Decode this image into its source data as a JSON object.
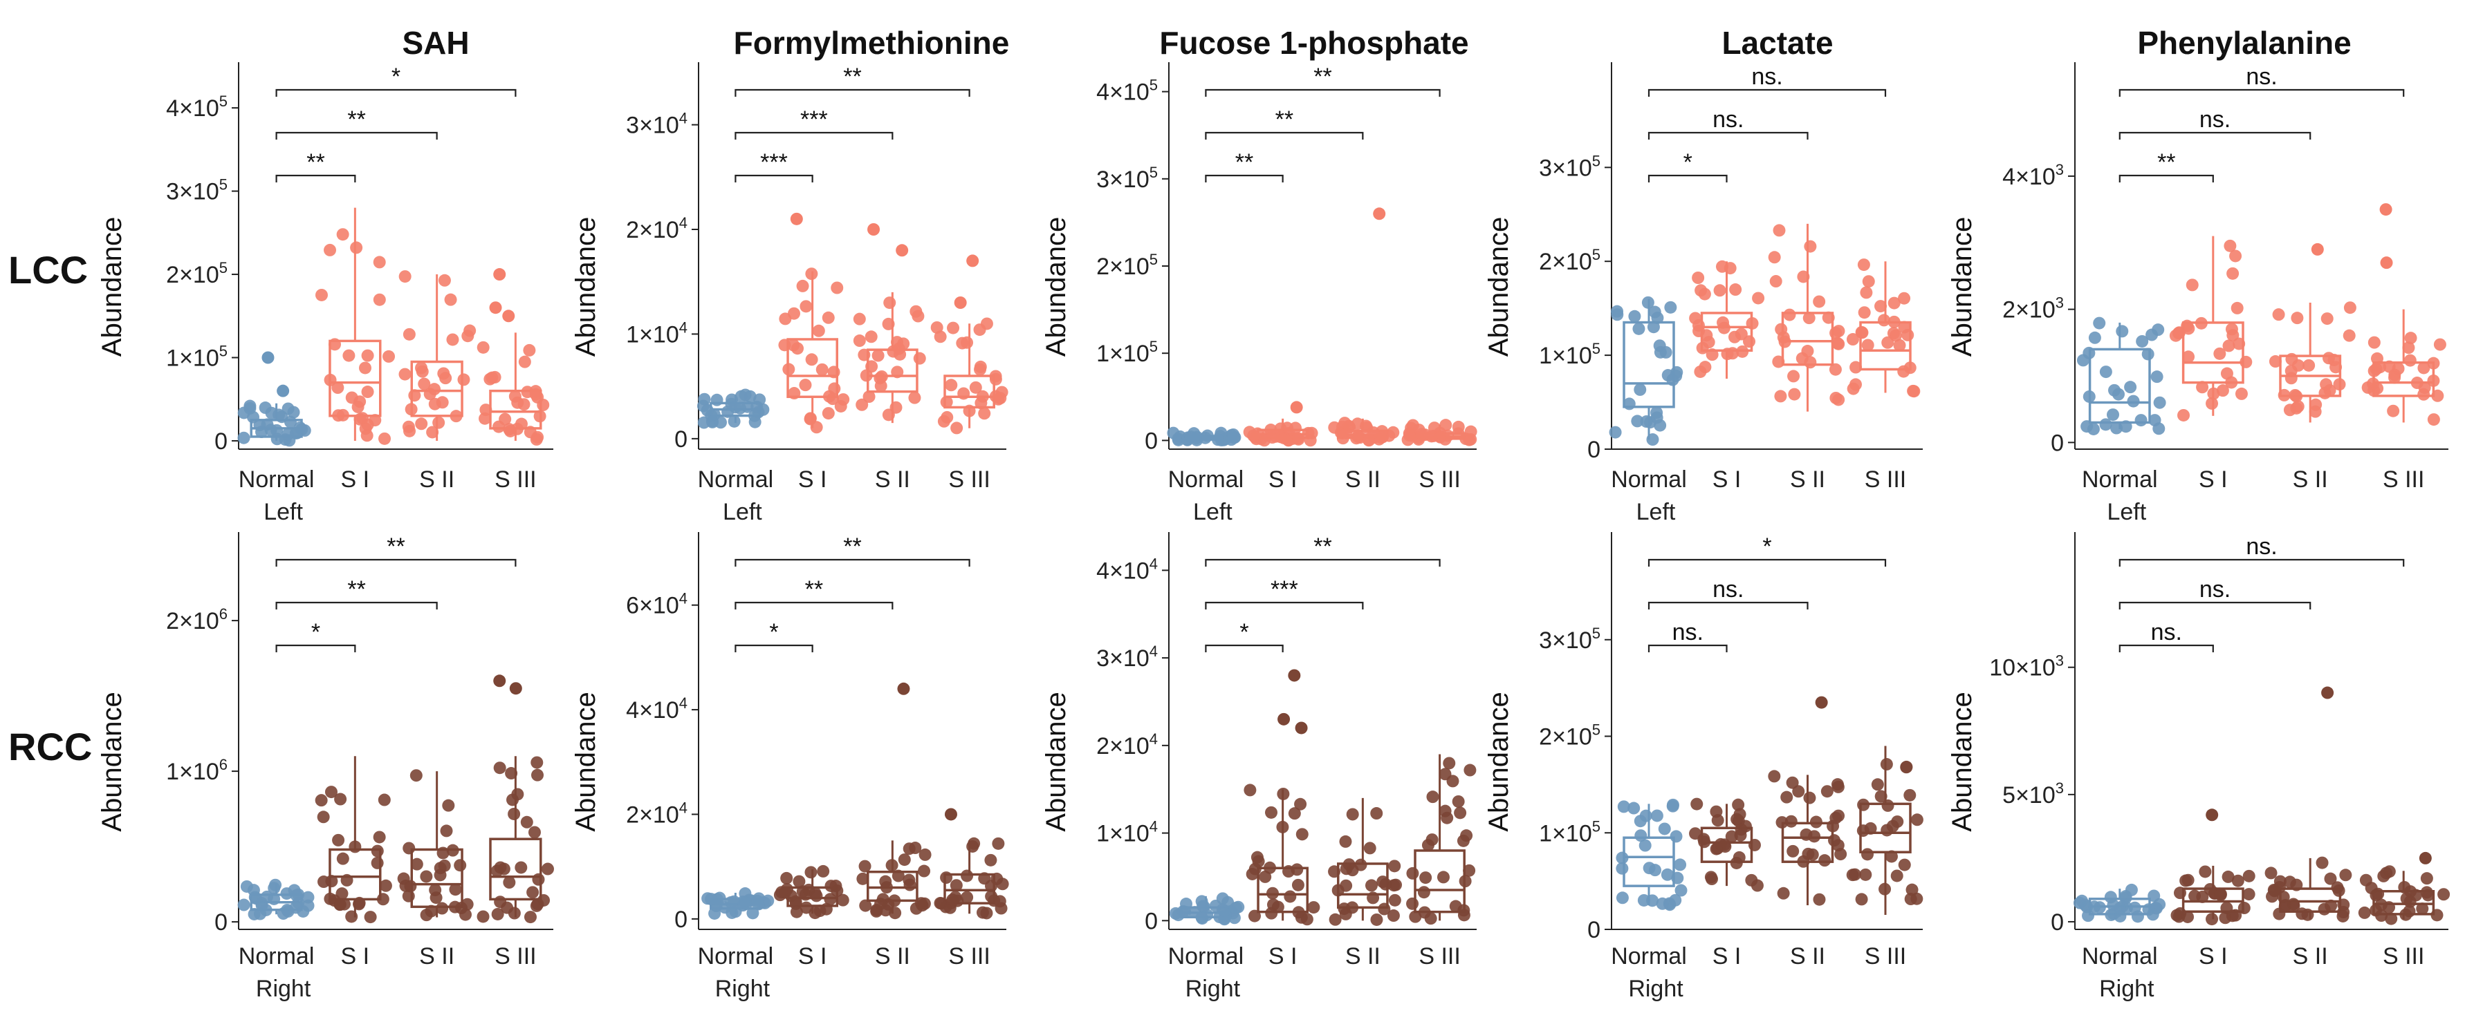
{
  "chart_data": {
    "type": "box",
    "figure_layout": "2 rows x 5 columns of box plots with jittered points",
    "column_titles": [
      "SAH",
      "Formylmethionine",
      "Fucose 1-phosphate",
      "Lactate",
      "Phenylalanine"
    ],
    "row_labels": [
      "LCC",
      "RCC"
    ],
    "ylabel": "Abundance",
    "colors": {
      "normal": "#6b97bd",
      "lcc": "#f4806c",
      "rcc": "#7b4535"
    },
    "panels": [
      {
        "row": "LCC",
        "metabolite": "SAH",
        "categories": [
          "Normal",
          "S I",
          "S II",
          "S III"
        ],
        "group_label": "Left",
        "yticks": [
          0,
          100000,
          200000,
          300000,
          400000
        ],
        "yticklabels": [
          {
            "m": "0",
            "e": ""
          },
          {
            "m": "1×10",
            "e": "5"
          },
          {
            "m": "2×10",
            "e": "5"
          },
          {
            "m": "3×10",
            "e": "5"
          },
          {
            "m": "4×10",
            "e": "5"
          }
        ],
        "ylim": [
          -10000,
          430000
        ],
        "boxes": [
          {
            "min": 0,
            "q1": 5000,
            "median": 15000,
            "q3": 25000,
            "max": 45000,
            "outliers": [
              60000,
              100000
            ]
          },
          {
            "min": 0,
            "q1": 30000,
            "median": 70000,
            "q3": 120000,
            "max": 280000,
            "outliers": []
          },
          {
            "min": 0,
            "q1": 30000,
            "median": 60000,
            "q3": 95000,
            "max": 200000,
            "outliers": []
          },
          {
            "min": 0,
            "q1": 15000,
            "median": 35000,
            "q3": 60000,
            "max": 130000,
            "outliers": [
              150000,
              160000,
              200000
            ]
          }
        ],
        "comparisons": [
          {
            "from": 0,
            "to": 1,
            "label": "**"
          },
          {
            "from": 0,
            "to": 2,
            "label": "**"
          },
          {
            "from": 0,
            "to": 3,
            "label": "*"
          }
        ]
      },
      {
        "row": "LCC",
        "metabolite": "Formylmethionine",
        "categories": [
          "Normal",
          "S I",
          "S II",
          "S III"
        ],
        "group_label": "Left",
        "yticks": [
          0,
          10000,
          20000,
          30000
        ],
        "yticklabels": [
          {
            "m": "0",
            "e": ""
          },
          {
            "m": "1×10",
            "e": "4"
          },
          {
            "m": "2×10",
            "e": "4"
          },
          {
            "m": "3×10",
            "e": "4"
          }
        ],
        "ylim": [
          -1000,
          34000
        ],
        "boxes": [
          {
            "min": 1500,
            "q1": 2200,
            "median": 2800,
            "q3": 3400,
            "max": 4200,
            "outliers": []
          },
          {
            "min": 1000,
            "q1": 4000,
            "median": 6000,
            "q3": 9500,
            "max": 16000,
            "outliers": [
              21000
            ]
          },
          {
            "min": 1500,
            "q1": 4500,
            "median": 6000,
            "q3": 8500,
            "max": 14000,
            "outliers": [
              18000,
              20000
            ]
          },
          {
            "min": 1000,
            "q1": 3000,
            "median": 4000,
            "q3": 6000,
            "max": 11000,
            "outliers": [
              13000,
              17000
            ]
          }
        ],
        "comparisons": [
          {
            "from": 0,
            "to": 1,
            "label": "***"
          },
          {
            "from": 0,
            "to": 2,
            "label": "***"
          },
          {
            "from": 0,
            "to": 3,
            "label": "**"
          }
        ]
      },
      {
        "row": "LCC",
        "metabolite": "Fucose 1-phosphate",
        "categories": [
          "Normal",
          "S I",
          "S II",
          "S III"
        ],
        "group_label": "Left",
        "yticks": [
          0,
          100000,
          200000,
          300000,
          400000
        ],
        "yticklabels": [
          {
            "m": "0",
            "e": ""
          },
          {
            "m": "1×10",
            "e": "5"
          },
          {
            "m": "2×10",
            "e": "5"
          },
          {
            "m": "3×10",
            "e": "5"
          },
          {
            "m": "4×10",
            "e": "5"
          }
        ],
        "ylim": [
          -10000,
          410000
        ],
        "boxes": [
          {
            "min": 0,
            "q1": 1000,
            "median": 3000,
            "q3": 5000,
            "max": 9000,
            "outliers": []
          },
          {
            "min": 0,
            "q1": 3000,
            "median": 7000,
            "q3": 12000,
            "max": 25000,
            "outliers": [
              38000
            ]
          },
          {
            "min": 0,
            "q1": 3000,
            "median": 6000,
            "q3": 11000,
            "max": 25000,
            "outliers": [
              260000
            ]
          },
          {
            "min": 0,
            "q1": 2000,
            "median": 4000,
            "q3": 8000,
            "max": 18000,
            "outliers": []
          }
        ],
        "comparisons": [
          {
            "from": 0,
            "to": 1,
            "label": "**"
          },
          {
            "from": 0,
            "to": 2,
            "label": "**"
          },
          {
            "from": 0,
            "to": 3,
            "label": "**"
          }
        ]
      },
      {
        "row": "LCC",
        "metabolite": "Lactate",
        "categories": [
          "Normal",
          "S I",
          "S II",
          "S III"
        ],
        "group_label": "Left",
        "yticks": [
          0,
          100000,
          200000,
          300000
        ],
        "yticklabels": [
          {
            "m": "0",
            "e": ""
          },
          {
            "m": "1×10",
            "e": "5"
          },
          {
            "m": "2×10",
            "e": "5"
          },
          {
            "m": "3×10",
            "e": "5"
          }
        ],
        "ylim": [
          0,
          390000
        ],
        "boxes": [
          {
            "min": 10000,
            "q1": 45000,
            "median": 70000,
            "q3": 135000,
            "max": 160000,
            "outliers": []
          },
          {
            "min": 75000,
            "q1": 105000,
            "median": 130000,
            "q3": 145000,
            "max": 200000,
            "outliers": []
          },
          {
            "min": 40000,
            "q1": 90000,
            "median": 115000,
            "q3": 145000,
            "max": 240000,
            "outliers": []
          },
          {
            "min": 60000,
            "q1": 85000,
            "median": 105000,
            "q3": 135000,
            "max": 200000,
            "outliers": []
          }
        ],
        "comparisons": [
          {
            "from": 0,
            "to": 1,
            "label": "*"
          },
          {
            "from": 0,
            "to": 2,
            "label": "ns."
          },
          {
            "from": 0,
            "to": 3,
            "label": "ns."
          }
        ]
      },
      {
        "row": "LCC",
        "metabolite": "Phenylalanine",
        "categories": [
          "Normal",
          "S I",
          "S II",
          "S III"
        ],
        "group_label": "Left",
        "yticks": [
          0,
          2000,
          4000
        ],
        "yticklabels": [
          {
            "m": "0",
            "e": ""
          },
          {
            "m": "2×10",
            "e": "3"
          },
          {
            "m": "4×10",
            "e": "3"
          }
        ],
        "ylim": [
          -100,
          5400
        ],
        "boxes": [
          {
            "min": 200,
            "q1": 300,
            "median": 600,
            "q3": 1400,
            "max": 1800,
            "outliers": []
          },
          {
            "min": 400,
            "q1": 900,
            "median": 1200,
            "q3": 1800,
            "max": 3100,
            "outliers": []
          },
          {
            "min": 300,
            "q1": 700,
            "median": 1000,
            "q3": 1300,
            "max": 2100,
            "outliers": [
              2900
            ]
          },
          {
            "min": 300,
            "q1": 700,
            "median": 900,
            "q3": 1200,
            "max": 2000,
            "outliers": [
              2700,
              3500
            ]
          }
        ],
        "comparisons": [
          {
            "from": 0,
            "to": 1,
            "label": "**"
          },
          {
            "from": 0,
            "to": 2,
            "label": "ns."
          },
          {
            "from": 0,
            "to": 3,
            "label": "ns."
          }
        ]
      },
      {
        "row": "RCC",
        "metabolite": "SAH",
        "categories": [
          "Normal",
          "S I",
          "S II",
          "S III"
        ],
        "group_label": "Right",
        "yticks": [
          0,
          1000000,
          2000000
        ],
        "yticklabels": [
          {
            "m": "0",
            "e": ""
          },
          {
            "m": "1×10",
            "e": "6"
          },
          {
            "m": "2×10",
            "e": "6"
          }
        ],
        "ylim": [
          -50000,
          2450000
        ],
        "boxes": [
          {
            "min": 50000,
            "q1": 80000,
            "median": 130000,
            "q3": 180000,
            "max": 250000,
            "outliers": []
          },
          {
            "min": 30000,
            "q1": 150000,
            "median": 300000,
            "q3": 480000,
            "max": 1100000,
            "outliers": []
          },
          {
            "min": 30000,
            "q1": 100000,
            "median": 250000,
            "q3": 480000,
            "max": 1000000,
            "outliers": []
          },
          {
            "min": 30000,
            "q1": 150000,
            "median": 300000,
            "q3": 550000,
            "max": 1100000,
            "outliers": [
              1550000,
              1600000
            ]
          }
        ],
        "comparisons": [
          {
            "from": 0,
            "to": 1,
            "label": "*"
          },
          {
            "from": 0,
            "to": 2,
            "label": "**"
          },
          {
            "from": 0,
            "to": 3,
            "label": "**"
          }
        ]
      },
      {
        "row": "RCC",
        "metabolite": "Formylmethionine",
        "categories": [
          "Normal",
          "S I",
          "S II",
          "S III"
        ],
        "group_label": "Right",
        "yticks": [
          0,
          20000,
          40000,
          60000
        ],
        "yticklabels": [
          {
            "m": "0",
            "e": ""
          },
          {
            "m": "2×10",
            "e": "4"
          },
          {
            "m": "4×10",
            "e": "4"
          },
          {
            "m": "6×10",
            "e": "4"
          }
        ],
        "ylim": [
          -2000,
          70000
        ],
        "boxes": [
          {
            "min": 1000,
            "q1": 2000,
            "median": 2800,
            "q3": 3800,
            "max": 5000,
            "outliers": []
          },
          {
            "min": 1000,
            "q1": 2500,
            "median": 4000,
            "q3": 6000,
            "max": 9500,
            "outliers": []
          },
          {
            "min": 1000,
            "q1": 3500,
            "median": 6000,
            "q3": 9000,
            "max": 15000,
            "outliers": [
              44000
            ]
          },
          {
            "min": 1000,
            "q1": 3000,
            "median": 5500,
            "q3": 8500,
            "max": 15000,
            "outliers": [
              20000
            ]
          }
        ],
        "comparisons": [
          {
            "from": 0,
            "to": 1,
            "label": "*"
          },
          {
            "from": 0,
            "to": 2,
            "label": "**"
          },
          {
            "from": 0,
            "to": 3,
            "label": "**"
          }
        ]
      },
      {
        "row": "RCC",
        "metabolite": "Fucose 1-phosphate",
        "categories": [
          "Normal",
          "S I",
          "S II",
          "S III"
        ],
        "group_label": "Right",
        "yticks": [
          0,
          10000,
          20000,
          30000,
          40000
        ],
        "yticklabels": [
          {
            "m": "0",
            "e": ""
          },
          {
            "m": "1×10",
            "e": "4"
          },
          {
            "m": "2×10",
            "e": "4"
          },
          {
            "m": "3×10",
            "e": "4"
          },
          {
            "m": "4×10",
            "e": "4"
          }
        ],
        "ylim": [
          -1000,
          42000
        ],
        "boxes": [
          {
            "min": 0,
            "q1": 400,
            "median": 900,
            "q3": 1500,
            "max": 2800,
            "outliers": []
          },
          {
            "min": 0,
            "q1": 1000,
            "median": 3000,
            "q3": 6000,
            "max": 15000,
            "outliers": [
              22000,
              23000,
              28000
            ]
          },
          {
            "min": 0,
            "q1": 1500,
            "median": 3000,
            "q3": 6500,
            "max": 14000,
            "outliers": []
          },
          {
            "min": 0,
            "q1": 1000,
            "median": 3500,
            "q3": 8000,
            "max": 19000,
            "outliers": []
          }
        ],
        "comparisons": [
          {
            "from": 0,
            "to": 1,
            "label": "*"
          },
          {
            "from": 0,
            "to": 2,
            "label": "***"
          },
          {
            "from": 0,
            "to": 3,
            "label": "**"
          }
        ]
      },
      {
        "row": "RCC",
        "metabolite": "Lactate",
        "categories": [
          "Normal",
          "S I",
          "S II",
          "S III"
        ],
        "group_label": "Right",
        "yticks": [
          0,
          100000,
          200000,
          300000
        ],
        "yticklabels": [
          {
            "m": "0",
            "e": ""
          },
          {
            "m": "1×10",
            "e": "5"
          },
          {
            "m": "2×10",
            "e": "5"
          },
          {
            "m": "3×10",
            "e": "5"
          }
        ],
        "ylim": [
          0,
          390000
        ],
        "boxes": [
          {
            "min": 25000,
            "q1": 45000,
            "median": 75000,
            "q3": 95000,
            "max": 130000,
            "outliers": []
          },
          {
            "min": 45000,
            "q1": 70000,
            "median": 90000,
            "q3": 105000,
            "max": 130000,
            "outliers": []
          },
          {
            "min": 25000,
            "q1": 70000,
            "median": 95000,
            "q3": 110000,
            "max": 160000,
            "outliers": [
              235000
            ]
          },
          {
            "min": 15000,
            "q1": 80000,
            "median": 100000,
            "q3": 130000,
            "max": 190000,
            "outliers": []
          }
        ],
        "comparisons": [
          {
            "from": 0,
            "to": 1,
            "label": "ns."
          },
          {
            "from": 0,
            "to": 2,
            "label": "ns."
          },
          {
            "from": 0,
            "to": 3,
            "label": "*"
          }
        ]
      },
      {
        "row": "RCC",
        "metabolite": "Phenylalanine",
        "categories": [
          "Normal",
          "S I",
          "S II",
          "S III"
        ],
        "group_label": "Right",
        "yticks": [
          0,
          5000,
          10000
        ],
        "yticklabels": [
          {
            "m": "0",
            "e": ""
          },
          {
            "m": "5×10",
            "e": "3"
          },
          {
            "m": "10×10",
            "e": "3"
          }
        ],
        "ylim": [
          -300,
          14500
        ],
        "boxes": [
          {
            "min": 200,
            "q1": 300,
            "median": 600,
            "q3": 900,
            "max": 1300,
            "outliers": []
          },
          {
            "min": 100,
            "q1": 400,
            "median": 800,
            "q3": 1300,
            "max": 2200,
            "outliers": [
              4200
            ]
          },
          {
            "min": 100,
            "q1": 400,
            "median": 800,
            "q3": 1300,
            "max": 2500,
            "outliers": [
              9000
            ]
          },
          {
            "min": 100,
            "q1": 300,
            "median": 700,
            "q3": 1200,
            "max": 2000,
            "outliers": [
              2500
            ]
          }
        ],
        "comparisons": [
          {
            "from": 0,
            "to": 1,
            "label": "ns."
          },
          {
            "from": 0,
            "to": 2,
            "label": "ns."
          },
          {
            "from": 0,
            "to": 3,
            "label": "ns."
          }
        ]
      }
    ]
  }
}
